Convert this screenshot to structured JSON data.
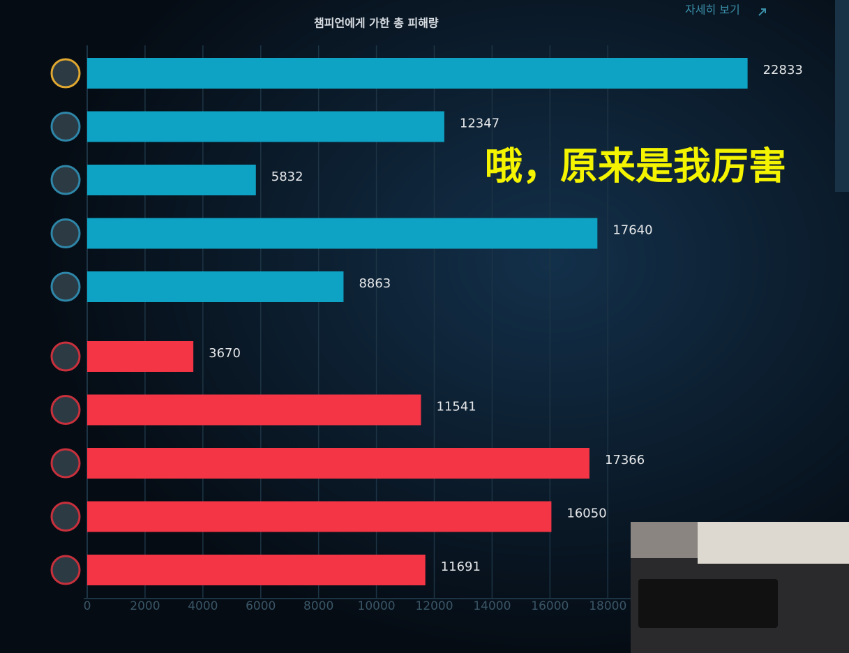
{
  "link": "자세히 보기",
  "caption": "哦，原来是我厉害",
  "chart_data": {
    "type": "bar",
    "orientation": "horizontal",
    "title": "챔피언에게 가한 총 피해량",
    "series": [
      {
        "color": "#0ea3c4",
        "values": [
          22833,
          12347,
          5832,
          17640,
          8863
        ]
      },
      {
        "color": "#f33545",
        "values": [
          3670,
          11541,
          17366,
          16050,
          11691
        ]
      }
    ],
    "xlim": [
      0,
      24000
    ],
    "xticks": [
      0,
      2000,
      4000,
      6000,
      8000,
      10000,
      12000,
      14000,
      16000,
      18000
    ],
    "grid": true
  }
}
